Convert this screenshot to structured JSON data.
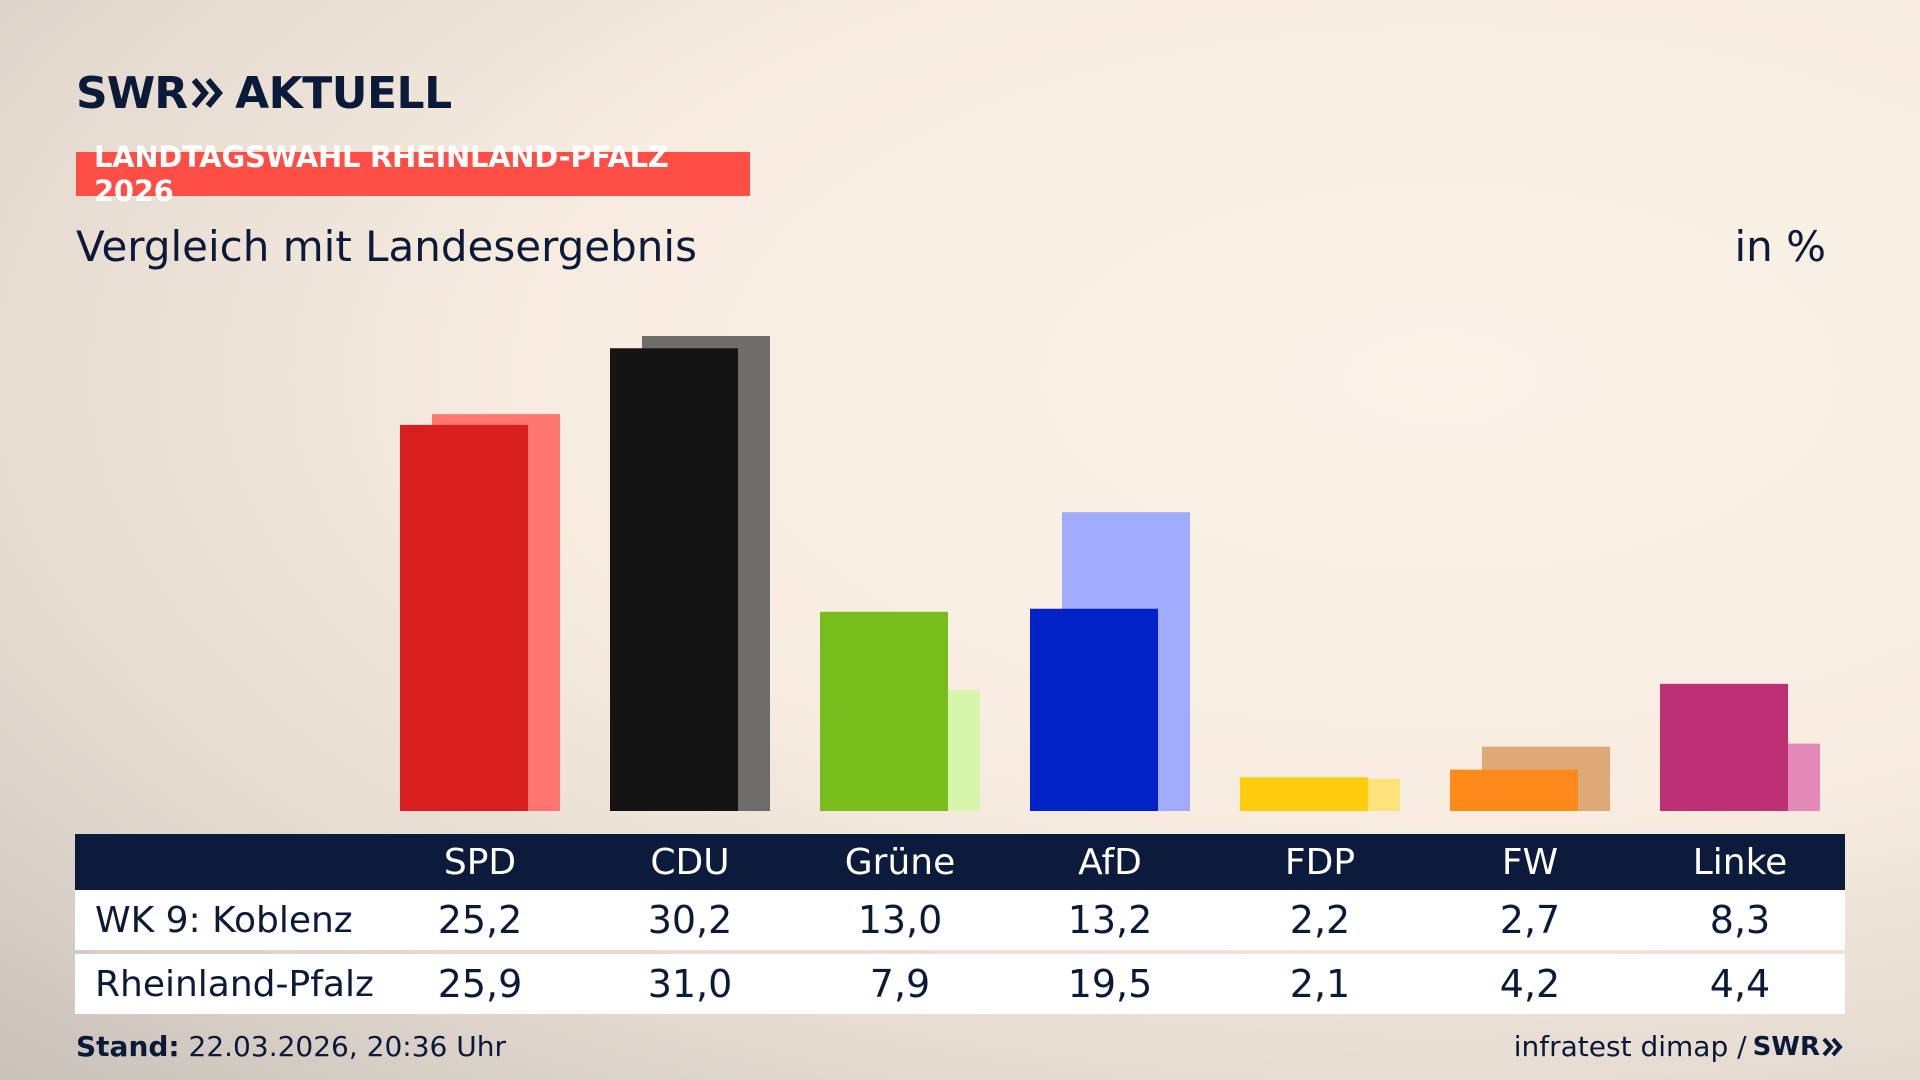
{
  "header": {
    "brand": "SWR",
    "brand_suffix": "AKTUELL",
    "tag": "LANDTAGSWAHL RHEINLAND-PFALZ 2026",
    "subtitle": "Vergleich mit Landesergebnis",
    "unit": "in %"
  },
  "chart_data": {
    "type": "bar",
    "categories": [
      "SPD",
      "CDU",
      "Grüne",
      "AfD",
      "FDP",
      "FW",
      "Linke"
    ],
    "series": [
      {
        "name": "WK 9: Koblenz",
        "values": [
          25.2,
          30.2,
          13.0,
          13.2,
          2.2,
          2.7,
          8.3
        ],
        "labels": [
          "25,2",
          "30,2",
          "13,0",
          "13,2",
          "2,2",
          "2,7",
          "8,3"
        ]
      },
      {
        "name": "Rheinland-Pfalz",
        "values": [
          25.9,
          31.0,
          7.9,
          19.5,
          2.1,
          4.2,
          4.4
        ],
        "labels": [
          "25,9",
          "31,0",
          "7,9",
          "19,5",
          "2,1",
          "4,2",
          "4,4"
        ]
      }
    ],
    "colors": {
      "primary": [
        "#d81f1f",
        "#141414",
        "#79bd1c",
        "#0022c7",
        "#ffcc0e",
        "#fd8a1b",
        "#bd3075"
      ],
      "secondary": [
        "#ff7570",
        "#6f6d6b",
        "#d8f6ab",
        "#a1abfe",
        "#fde27a",
        "#dfa877",
        "#e289b7"
      ]
    },
    "ylim": [
      0,
      31
    ]
  },
  "footer": {
    "stand_label": "Stand:",
    "stand_value": "22.03.2026, 20:36 Uhr",
    "source": "infratest dimap /",
    "source_brand": "SWR"
  }
}
